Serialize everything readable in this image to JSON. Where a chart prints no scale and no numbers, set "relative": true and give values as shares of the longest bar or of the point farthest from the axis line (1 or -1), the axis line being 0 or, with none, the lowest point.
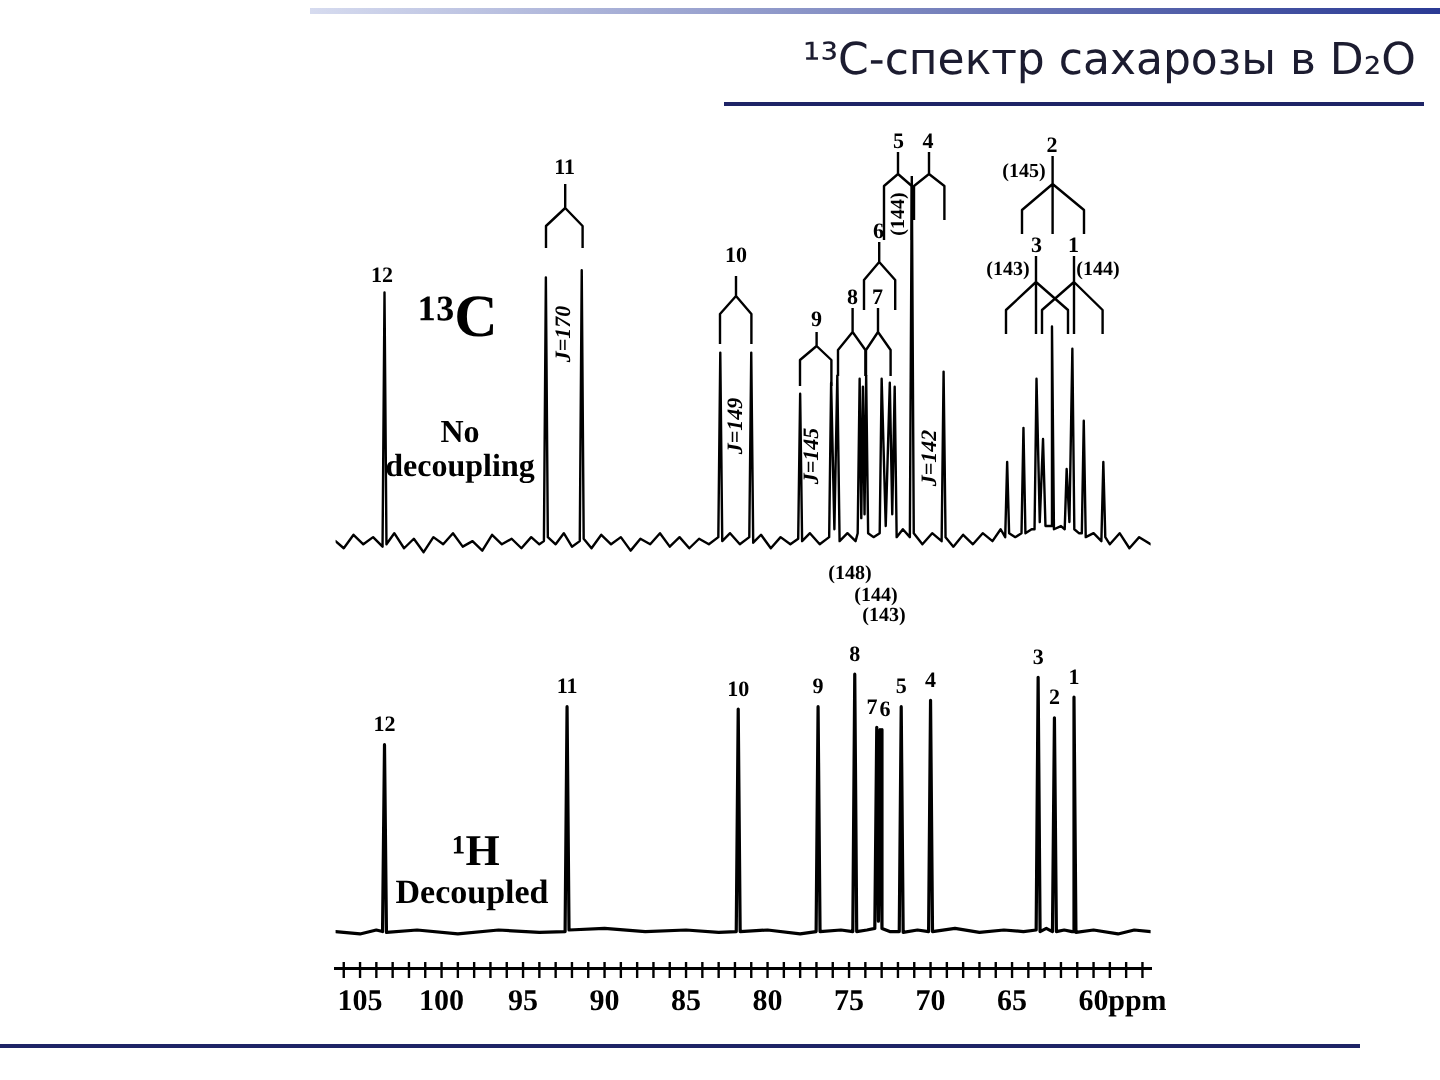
{
  "chart_data": {
    "type": "line",
    "title": "¹³C-спектр сахарозы в D₂O",
    "relative": true,
    "xlim": [
      106.5,
      56.5
    ],
    "xlabel": "ppm",
    "tick_labels": "x",
    "xticks": [
      {
        "value": 106,
        "label": null
      },
      105,
      {
        "value": 104,
        "label": null
      },
      {
        "value": 103,
        "label": null
      },
      {
        "value": 102,
        "label": null
      },
      {
        "value": 101,
        "label": null
      },
      100,
      {
        "value": 99,
        "label": null
      },
      {
        "value": 98,
        "label": null
      },
      {
        "value": 97,
        "label": null
      },
      {
        "value": 96,
        "label": null
      },
      95,
      {
        "value": 94,
        "label": null
      },
      {
        "value": 93,
        "label": null
      },
      {
        "value": 92,
        "label": null
      },
      {
        "value": 91,
        "label": null
      },
      90,
      {
        "value": 89,
        "label": null
      },
      {
        "value": 88,
        "label": null
      },
      {
        "value": 87,
        "label": null
      },
      {
        "value": 86,
        "label": null
      },
      85,
      {
        "value": 84,
        "label": null
      },
      {
        "value": 83,
        "label": null
      },
      {
        "value": 82,
        "label": null
      },
      {
        "value": 81,
        "label": null
      },
      80,
      {
        "value": 79,
        "label": null
      },
      {
        "value": 78,
        "label": null
      },
      {
        "value": 77,
        "label": null
      },
      {
        "value": 76,
        "label": null
      },
      75,
      {
        "value": 74,
        "label": null
      },
      {
        "value": 73,
        "label": null
      },
      {
        "value": 72,
        "label": null
      },
      {
        "value": 71,
        "label": null
      },
      70,
      {
        "value": 69,
        "label": null
      },
      {
        "value": 68,
        "label": null
      },
      {
        "value": 67,
        "label": null
      },
      {
        "value": 66,
        "label": null
      },
      65,
      {
        "value": 64,
        "label": null
      },
      {
        "value": 63,
        "label": null
      },
      {
        "value": 62,
        "label": null
      },
      {
        "value": 61,
        "label": null
      },
      60,
      {
        "value": 59,
        "label": null
      },
      {
        "value": 58,
        "label": null
      },
      {
        "value": 57,
        "label": null
      }
    ],
    "series": [
      {
        "color": "#000000",
        "x": [
          106.5,
          106.0,
          105.4,
          104.8,
          104.2,
          103.62,
          103.5,
          103.38,
          102.9,
          102.3,
          101.7,
          101.1,
          100.5,
          99.9,
          99.3,
          98.7,
          98.1,
          97.5,
          96.9,
          96.3,
          95.7,
          95.1,
          94.5,
          94.0,
          93.72,
          93.6,
          93.48,
          93.0,
          92.5,
          92.0,
          91.52,
          91.4,
          91.28,
          90.8,
          90.2,
          89.6,
          89.0,
          88.4,
          87.8,
          87.2,
          86.6,
          86.0,
          85.4,
          84.8,
          84.2,
          83.6,
          83.02,
          82.9,
          82.78,
          82.3,
          81.7,
          81.12,
          81.0,
          80.88,
          80.4,
          79.8,
          79.2,
          78.6,
          78.12,
          78.0,
          77.88,
          77.4,
          76.8,
          76.22,
          76.1,
          75.9,
          75.72,
          75.58,
          75.1,
          74.6,
          74.47,
          74.35,
          74.25,
          74.15,
          74.05,
          73.95,
          73.83,
          73.5,
          73.12,
          73.0,
          72.75,
          72.5,
          72.35,
          72.2,
          72.08,
          71.7,
          71.27,
          71.15,
          71.03,
          70.5,
          69.9,
          69.32,
          69.2,
          69.08,
          68.6,
          68.0,
          67.4,
          66.8,
          66.2,
          65.7,
          65.42,
          65.3,
          65.18,
          64.8,
          64.42,
          64.3,
          64.18,
          63.8,
          63.62,
          63.5,
          63.3,
          63.1,
          62.95,
          62.67,
          62.55,
          62.43,
          62.0,
          61.77,
          61.65,
          61.48,
          61.3,
          61.18,
          60.9,
          60.72,
          60.6,
          60.48,
          60.0,
          59.52,
          59.4,
          59.28,
          59.0,
          58.4,
          57.8,
          57.2,
          56.5
        ],
        "values": [
          0.539,
          0.53,
          0.547,
          0.535,
          0.544,
          0.532,
          0.853,
          0.535,
          0.549,
          0.53,
          0.542,
          0.525,
          0.544,
          0.535,
          0.549,
          0.532,
          0.539,
          0.527,
          0.547,
          0.535,
          0.542,
          0.53,
          0.544,
          0.535,
          0.539,
          0.872,
          0.544,
          0.535,
          0.549,
          0.532,
          0.539,
          0.881,
          0.542,
          0.53,
          0.547,
          0.535,
          0.544,
          0.527,
          0.542,
          0.535,
          0.549,
          0.532,
          0.544,
          0.53,
          0.542,
          0.535,
          0.544,
          0.777,
          0.539,
          0.549,
          0.535,
          0.544,
          0.777,
          0.537,
          0.547,
          0.53,
          0.544,
          0.535,
          0.542,
          0.725,
          0.539,
          0.549,
          0.535,
          0.544,
          0.739,
          0.554,
          0.748,
          0.539,
          0.549,
          0.539,
          0.549,
          0.744,
          0.568,
          0.734,
          0.573,
          0.748,
          0.549,
          0.544,
          0.549,
          0.744,
          0.558,
          0.739,
          0.573,
          0.734,
          0.544,
          0.554,
          0.544,
          1.0,
          0.549,
          0.535,
          0.549,
          0.539,
          0.753,
          0.544,
          0.532,
          0.547,
          0.535,
          0.549,
          0.539,
          0.554,
          0.544,
          0.639,
          0.549,
          0.544,
          0.549,
          0.682,
          0.549,
          0.554,
          0.554,
          0.744,
          0.563,
          0.668,
          0.558,
          0.558,
          0.81,
          0.554,
          0.558,
          0.554,
          0.63,
          0.563,
          0.782,
          0.554,
          0.549,
          0.549,
          0.691,
          0.544,
          0.549,
          0.539,
          0.639,
          0.544,
          0.535,
          0.549,
          0.53,
          0.544,
          0.535
        ]
      },
      {
        "color": "#000000",
        "x": [
          106.5,
          105.0,
          104.0,
          103.62,
          103.5,
          103.38,
          101.5,
          99.0,
          96.5,
          94.0,
          92.42,
          92.3,
          92.18,
          90.0,
          87.5,
          85.0,
          83.0,
          81.92,
          81.8,
          81.68,
          80.0,
          78.0,
          77.02,
          76.9,
          76.78,
          75.5,
          74.77,
          74.65,
          74.53,
          73.9,
          73.42,
          73.3,
          73.2,
          73.1,
          72.98,
          72.5,
          71.92,
          71.8,
          71.68,
          70.8,
          70.12,
          70.0,
          69.88,
          68.5,
          67.0,
          65.5,
          64.3,
          63.52,
          63.4,
          63.28,
          62.9,
          62.52,
          62.4,
          62.28,
          61.8,
          61.32,
          61.2,
          61.08,
          60.0,
          58.5,
          57.5,
          56.5
        ],
        "values": [
          0.046,
          0.043,
          0.048,
          0.046,
          0.282,
          0.045,
          0.048,
          0.043,
          0.048,
          0.045,
          0.046,
          0.33,
          0.048,
          0.05,
          0.046,
          0.048,
          0.045,
          0.046,
          0.327,
          0.046,
          0.048,
          0.043,
          0.046,
          0.33,
          0.046,
          0.048,
          0.046,
          0.371,
          0.046,
          0.048,
          0.05,
          0.304,
          0.059,
          0.301,
          0.05,
          0.046,
          0.046,
          0.33,
          0.045,
          0.048,
          0.046,
          0.338,
          0.046,
          0.05,
          0.045,
          0.048,
          0.046,
          0.048,
          0.367,
          0.046,
          0.05,
          0.046,
          0.316,
          0.046,
          0.048,
          0.046,
          0.342,
          0.045,
          0.048,
          0.043,
          0.048,
          0.046
        ]
      }
    ],
    "annotations": [
      "12",
      "11",
      "10",
      "9",
      "8",
      "7",
      "6",
      "5",
      "4",
      "3",
      "2",
      "1",
      "¹³C",
      "No decoupling",
      "J=170",
      "J=149",
      "J=145",
      "J=142",
      "(145)",
      "(143)",
      "(144)",
      "(144)",
      "(148)",
      "(144)",
      "(143)",
      {
        "text": "12",
        "x": 103.5,
        "y": 0.282
      },
      {
        "text": "11",
        "x": 92.3,
        "y": 0.33
      },
      {
        "text": "10",
        "x": 81.8,
        "y": 0.327
      },
      {
        "text": "9",
        "x": 76.9,
        "y": 0.33
      },
      {
        "text": "8",
        "x": 74.65,
        "y": 0.371
      },
      {
        "text": "7",
        "x": 73.3,
        "y": 0.304
      },
      {
        "text": "6",
        "x": 73.1,
        "y": 0.301
      },
      {
        "text": "5",
        "x": 71.8,
        "y": 0.33
      },
      {
        "text": "4",
        "x": 70.0,
        "y": 0.338
      },
      {
        "text": "3",
        "x": 63.4,
        "y": 0.367
      },
      {
        "text": "2",
        "x": 62.4,
        "y": 0.316
      },
      {
        "text": "1",
        "x": 61.2,
        "y": 0.342
      },
      "¹H",
      "Decoupled"
    ]
  }
}
